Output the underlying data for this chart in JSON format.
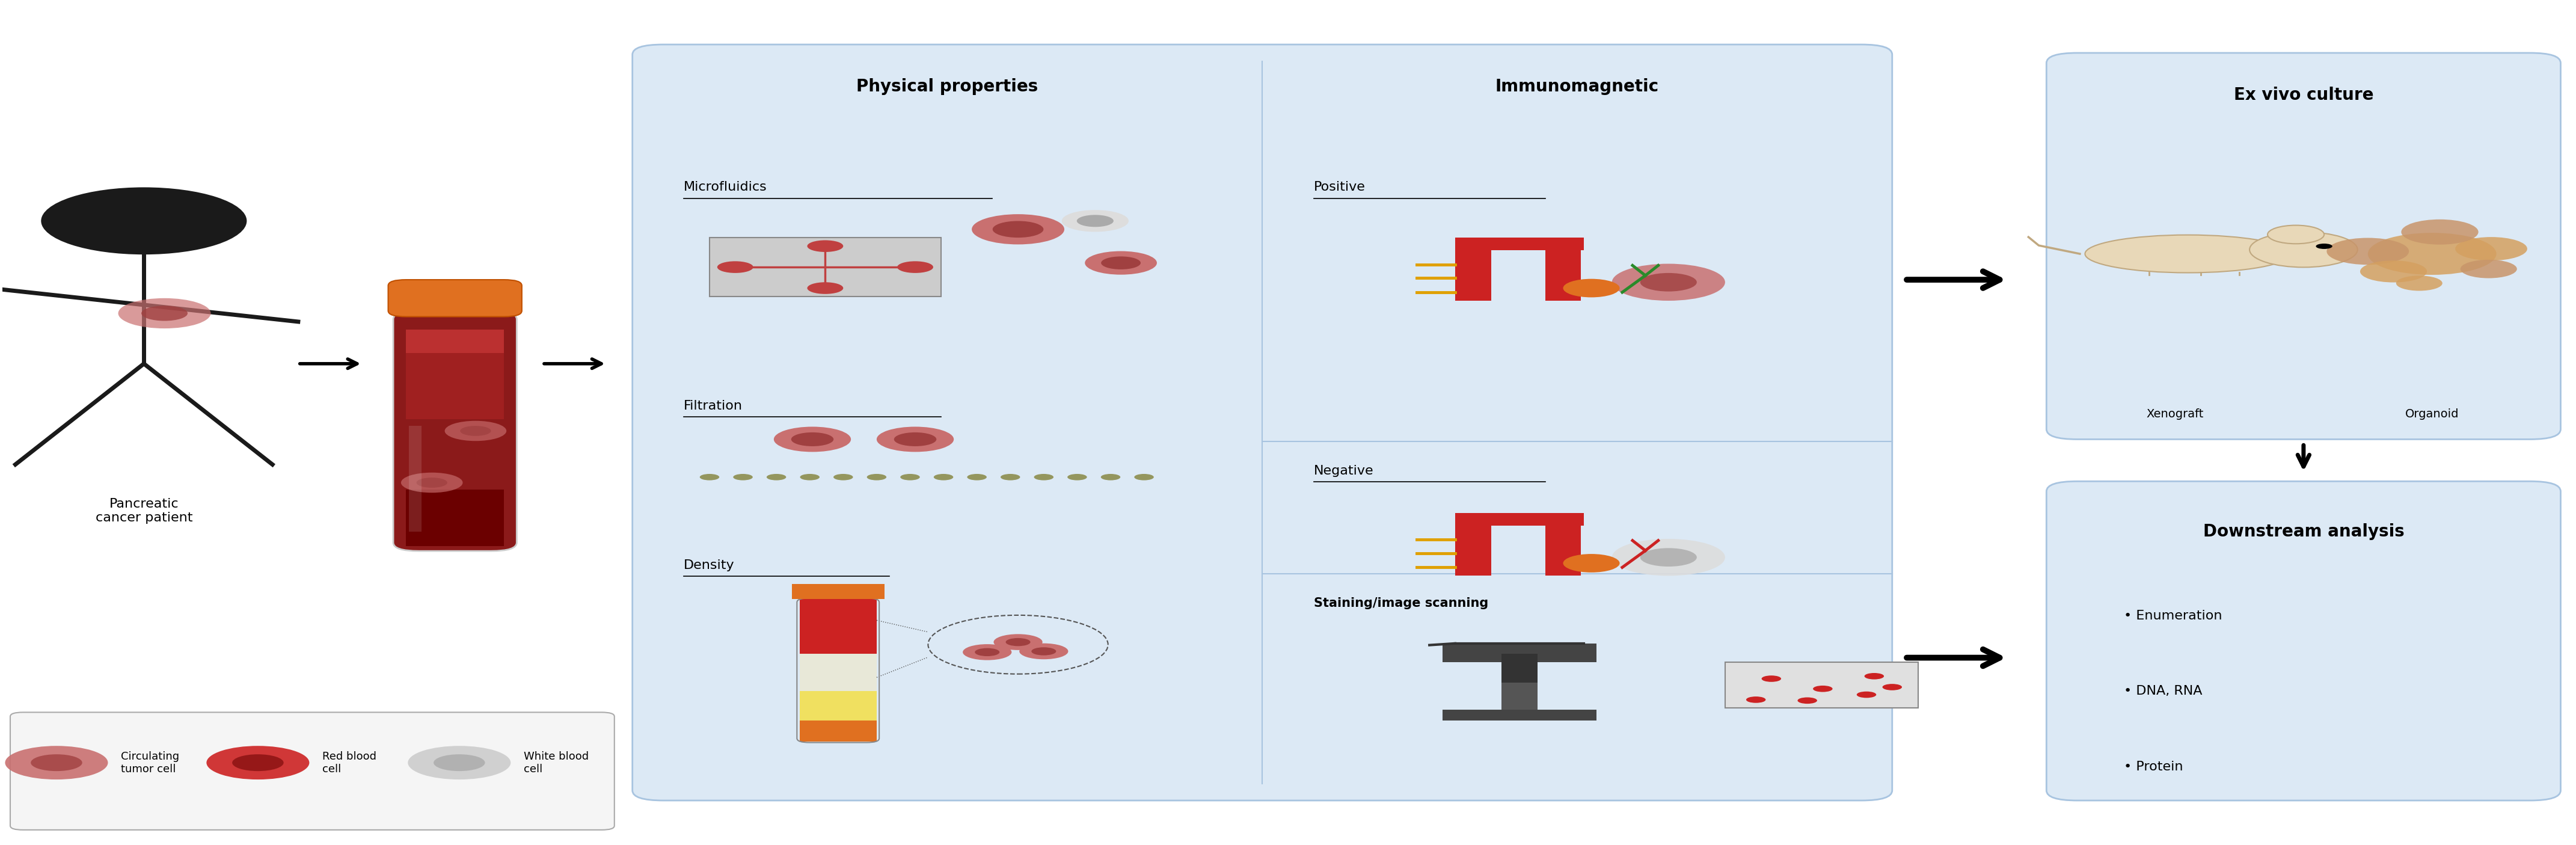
{
  "fig_width": 42.84,
  "fig_height": 14.05,
  "bg_color": "#ffffff",
  "box_bg_light": "#dce9f5",
  "box_border": "#a8c4e0",
  "title_fontsize": 20,
  "label_fontsize": 16,
  "small_fontsize": 13,
  "section1_title": "Physical properties",
  "section1_items": [
    "Microfluidics",
    "Filtration",
    "Density"
  ],
  "section2_title": "Immunomagnetic",
  "section2_items": [
    "Positive",
    "Negative",
    "Staining/image scanning"
  ],
  "section3_title": "Ex vivo culture",
  "section3_items": [
    "Xenograft",
    "Organoid"
  ],
  "section4_title": "Downstream analysis",
  "section4_items": [
    "• Enumeration",
    "• DNA, RNA",
    "• Protein"
  ],
  "patient_label": "Pancreatic\ncancer patient",
  "legend_items": [
    {
      "label": "Circulating\ntumor cell",
      "color": "#c97070",
      "inner": "#a04040"
    },
    {
      "label": "Red blood\ncell",
      "color": "#cc2222",
      "inner": "#881111"
    },
    {
      "label": "White blood\ncell",
      "color": "#cccccc",
      "inner": "#aaaaaa"
    }
  ]
}
